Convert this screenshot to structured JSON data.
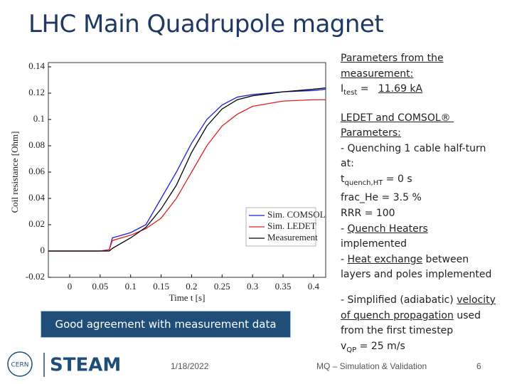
{
  "title": "LHC Main Quadrupole magnet",
  "chart_data": {
    "type": "line",
    "xlabel": "Time t [s]",
    "ylabel": "Coil resistance [Ohm]",
    "x": [
      -0.035,
      0,
      0.05,
      0.065,
      0.07,
      0.1,
      0.125,
      0.15,
      0.175,
      0.2,
      0.225,
      0.25,
      0.275,
      0.3,
      0.35,
      0.4,
      0.42
    ],
    "series": [
      {
        "name": "Sim. COMSOL",
        "color": "#1f1fd6",
        "values": [
          0,
          0,
          0,
          0.001,
          0.01,
          0.014,
          0.02,
          0.04,
          0.06,
          0.082,
          0.1,
          0.111,
          0.117,
          0.119,
          0.121,
          0.122,
          0.123
        ]
      },
      {
        "name": "Sim. LEDET",
        "color": "#e02020",
        "values": [
          0,
          0,
          0,
          0.001,
          0.008,
          0.012,
          0.017,
          0.025,
          0.04,
          0.06,
          0.08,
          0.095,
          0.104,
          0.11,
          0.114,
          0.115,
          0.115
        ]
      },
      {
        "name": "Measurement",
        "color": "#000000",
        "values": [
          0,
          0,
          0,
          0,
          0.002,
          0.01,
          0.018,
          0.032,
          0.05,
          0.075,
          0.095,
          0.108,
          0.115,
          0.118,
          0.121,
          0.123,
          0.124
        ]
      }
    ],
    "xlim": [
      -0.035,
      0.42
    ],
    "xticks": [
      0,
      0.05,
      0.1,
      0.15,
      0.2,
      0.25,
      0.3,
      0.35,
      0.4
    ],
    "ylim": [
      -0.02,
      0.14
    ],
    "yticks": [
      -0.02,
      0,
      0.02,
      0.04,
      0.06,
      0.08,
      0.1,
      0.12,
      0.14
    ],
    "legend": "lower right"
  },
  "notes": [
    [
      [
        {
          "text": "Parameters from the",
          "u": true
        }
      ],
      [
        {
          "text": "measurement:",
          "u": true
        }
      ],
      [
        {
          "text": "I"
        },
        {
          "text": "test",
          "sub": true
        },
        {
          "text": " =   "
        },
        {
          "text": "11.69 kA",
          "u": true
        }
      ]
    ],
    [
      [
        {
          "text": "LEDET and COMSOL® ",
          "u": true
        }
      ],
      [
        {
          "text": "Parameters:",
          "u": true
        }
      ],
      [
        {
          "text": "- Quenching 1 cable half-turn"
        }
      ],
      [
        {
          "text": "at:"
        }
      ],
      [
        {
          "text": "t"
        },
        {
          "text": "quench,HT",
          "sub": true
        },
        {
          "text": " = 0 s"
        }
      ],
      [
        {
          "text": "frac_He = 3.5 %"
        }
      ],
      [
        {
          "text": "RRR = 100"
        }
      ],
      [
        {
          "text": "- "
        },
        {
          "text": "Quench Heaters",
          "u": true
        }
      ],
      [
        {
          "text": "implemented"
        }
      ],
      [
        {
          "text": "- "
        },
        {
          "text": "Heat exchange",
          "u": true
        },
        {
          "text": " between"
        }
      ],
      [
        {
          "text": "layers and poles implemented"
        }
      ]
    ],
    [
      [
        {
          "text": "- Simplified (adiabatic) "
        },
        {
          "text": "velocity",
          "u": true
        }
      ],
      [
        {
          "text": "of quench propagation",
          "u": true
        },
        {
          "text": " used"
        }
      ],
      [
        {
          "text": "from the first timestep"
        }
      ],
      [
        {
          "text": "v"
        },
        {
          "text": "QP",
          "sub": true
        },
        {
          "text": " = 25 m/s"
        }
      ]
    ]
  ],
  "callout": "Good agreement with measurement data",
  "footer": {
    "logo_left": "CERN",
    "logo_right": "STEAM",
    "date": "1/18/2022",
    "center": "MQ – Simulation & Validation",
    "page": "6"
  }
}
